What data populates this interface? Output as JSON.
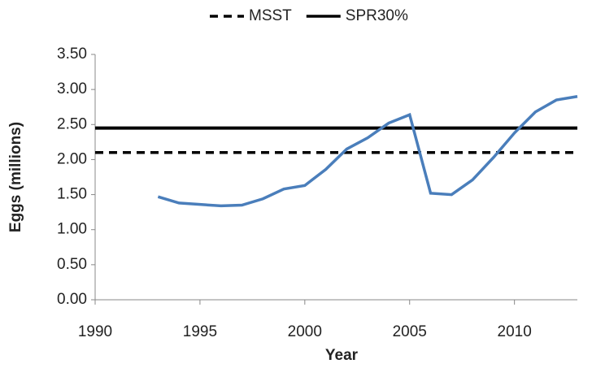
{
  "chart_data": {
    "type": "line",
    "x_label": "Year",
    "y_label": "Eggs (millions)",
    "xlim": [
      1990,
      2013
    ],
    "xticks": [
      1990,
      1995,
      2000,
      2005,
      2010
    ],
    "ylim": [
      0,
      3.5
    ],
    "yticks": [
      {
        "value": 0,
        "label": "0.00"
      },
      {
        "value": 0.5,
        "label": "0.50"
      },
      {
        "value": 1,
        "label": "1.00"
      },
      {
        "value": 1.5,
        "label": "1.50"
      },
      {
        "value": 2,
        "label": "2.00"
      },
      {
        "value": 2.5,
        "label": "2.50"
      },
      {
        "value": 3,
        "label": "3.00"
      },
      {
        "value": 3.5,
        "label": "3.50"
      }
    ],
    "legend": "top",
    "series": [
      {
        "name": "MSST",
        "color": "#000000",
        "dashed": true,
        "x": [
          1990,
          2013
        ],
        "values": [
          2.1,
          2.1
        ]
      },
      {
        "name": "SPR30%",
        "color": "#000000",
        "dashed": false,
        "x": [
          1990,
          2013
        ],
        "values": [
          2.45,
          2.45
        ]
      },
      {
        "color": "#4a7ebb",
        "dashed": false,
        "x": [
          1993,
          1994,
          1995,
          1996,
          1997,
          1998,
          1999,
          2000,
          2001,
          2002,
          2003,
          2004,
          2005,
          2006,
          2007,
          2008,
          2009,
          2010,
          2011,
          2012,
          2013
        ],
        "values": [
          1.47,
          1.38,
          1.36,
          1.34,
          1.35,
          1.44,
          1.58,
          1.63,
          1.86,
          2.15,
          2.31,
          2.52,
          2.64,
          1.52,
          1.5,
          1.71,
          2.03,
          2.38,
          2.68,
          2.85,
          2.9
        ]
      }
    ]
  }
}
